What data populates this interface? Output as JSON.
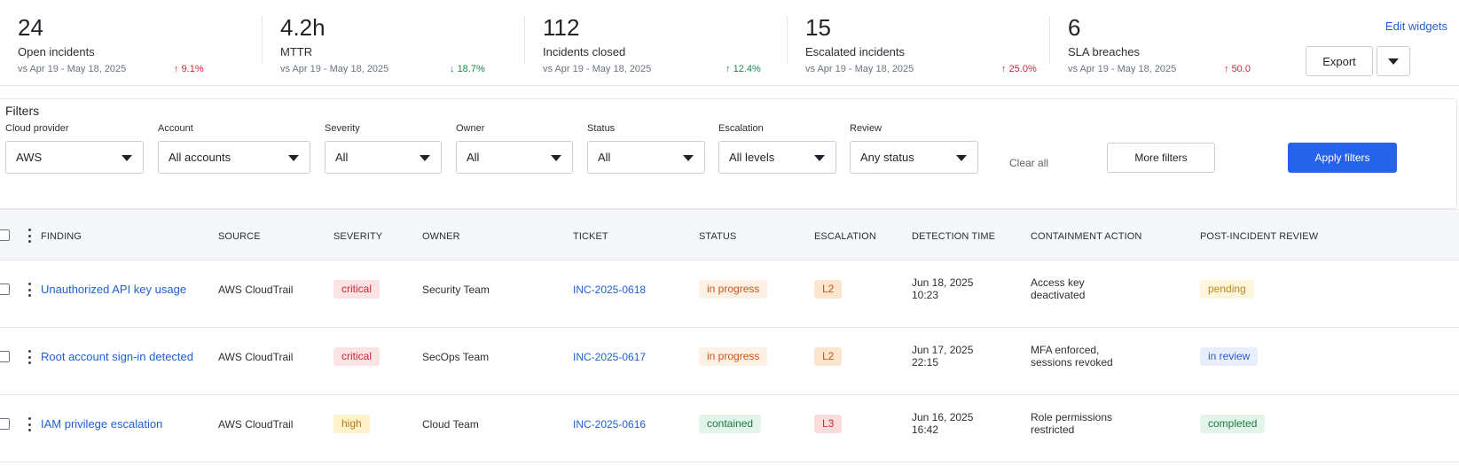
{
  "metrics": [
    {
      "value": "24",
      "label": "Open incidents",
      "period": "vs Apr 19 - May 18, 2025",
      "delta": "9.1%",
      "dir": "up"
    },
    {
      "value": "4.2h",
      "label": "MTTR",
      "period": "vs Apr 19 - May 18, 2025",
      "delta": "18.7%",
      "dir": "down"
    },
    {
      "value": "112",
      "label": "Incidents closed",
      "period": "vs Apr 19 - May 18, 2025",
      "delta": "12.4%",
      "dir": "good"
    },
    {
      "value": "15",
      "label": "Escalated incidents",
      "period": "vs Apr 19 - May 18, 2025",
      "delta": "25.0%",
      "dir": "up"
    },
    {
      "value": "6",
      "label": "SLA breaches",
      "period": "vs Apr 19 - May 18, 2025",
      "delta": "50.0",
      "dir": "up"
    }
  ],
  "header_actions": {
    "edit_widgets": "Edit widgets",
    "export": "Export"
  },
  "filters": {
    "title": "Filters",
    "fields": [
      {
        "label": "Cloud provider",
        "value": "AWS"
      },
      {
        "label": "Account",
        "value": "All accounts"
      },
      {
        "label": "Severity",
        "value": "All"
      },
      {
        "label": "Owner",
        "value": "All"
      },
      {
        "label": "Status",
        "value": "All"
      },
      {
        "label": "Escalation",
        "value": "All levels"
      },
      {
        "label": "Review",
        "value": "Any status"
      }
    ],
    "clear_all": "Clear all",
    "more_filters": "More filters",
    "apply_filters": "Apply filters"
  },
  "table": {
    "columns": [
      "FINDING",
      "SOURCE",
      "SEVERITY",
      "OWNER",
      "TICKET",
      "STATUS",
      "ESCALATION",
      "DETECTION TIME",
      "CONTAINMENT ACTION",
      "POST-INCIDENT REVIEW"
    ],
    "rows": [
      {
        "finding": "Unauthorized API key usage",
        "source": "AWS CloudTrail",
        "severity": "critical",
        "owner": "Security Team",
        "ticket": "INC-2025-0618",
        "status": "in progress",
        "escalation": "L2",
        "detect_date": "Jun 18, 2025",
        "detect_time": "10:23",
        "contain_1": "Access key",
        "contain_2": "deactivated",
        "review": "pending"
      },
      {
        "finding": "Root account sign-in detected",
        "source": "AWS CloudTrail",
        "severity": "critical",
        "owner": "SecOps Team",
        "ticket": "INC-2025-0617",
        "status": "in progress",
        "escalation": "L2",
        "detect_date": "Jun 17, 2025",
        "detect_time": "22:15",
        "contain_1": "MFA enforced,",
        "contain_2": "sessions revoked",
        "review": "in review"
      },
      {
        "finding": "IAM privilege escalation",
        "source": "AWS CloudTrail",
        "severity": "high",
        "owner": "Cloud Team",
        "ticket": "INC-2025-0616",
        "status": "contained",
        "escalation": "L3",
        "detect_date": "Jun 16, 2025",
        "detect_time": "16:42",
        "contain_1": "Role permissions",
        "contain_2": "restricted",
        "review": "completed"
      }
    ]
  },
  "colors": {
    "accent": "#2563eb",
    "link": "#1f5fd6",
    "badge_critical_bg": "#fbe3e4",
    "badge_critical_fg": "#c8283a",
    "badge_high_bg": "#fdf2c9",
    "badge_high_fg": "#b7791f",
    "badge_progress_bg": "#fdf0e4",
    "badge_progress_fg": "#c8561b",
    "badge_contained_bg": "#e3f5ea",
    "badge_contained_fg": "#1a7a42",
    "badge_l2_bg": "#fde4cc",
    "badge_l2_fg": "#c8561b",
    "badge_l3_bg": "#fbdcdc",
    "badge_l3_fg": "#c8283a",
    "badge_pending_bg": "#fdf6dc",
    "badge_pending_fg": "#b7891f",
    "badge_review_bg": "#e8eefb",
    "badge_review_fg": "#2b5cc4",
    "badge_completed_bg": "#e3f5ea",
    "badge_completed_fg": "#1a7a42"
  }
}
